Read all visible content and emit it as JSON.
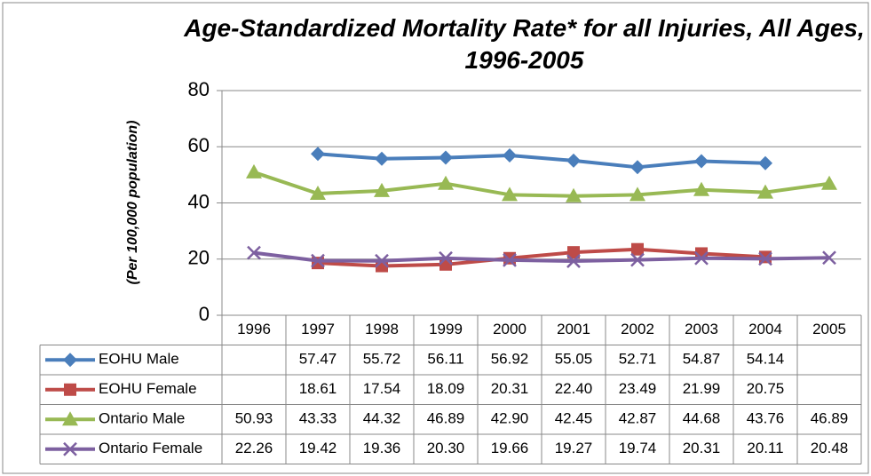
{
  "chart_data": {
    "type": "line",
    "title": "Age-Standardized Mortality Rate* for all Injuries, All Ages, 1996-2005",
    "y_label": "(Per 100,000 population)",
    "categories": [
      "1996",
      "1997",
      "1998",
      "1999",
      "2000",
      "2001",
      "2002",
      "2003",
      "2004",
      "2005"
    ],
    "ylim": [
      0,
      80
    ],
    "yticks": [
      0,
      20,
      40,
      60,
      80
    ],
    "grid": true,
    "series": [
      {
        "name": "EOHU Male",
        "color": "#4a7ebb",
        "marker": "diamond",
        "values": [
          null,
          57.47,
          55.72,
          56.11,
          56.92,
          55.05,
          52.71,
          54.87,
          54.14,
          null
        ],
        "value_labels": [
          null,
          "57.47",
          "55.72",
          "56.11",
          "56.92",
          "55.05",
          "52.71",
          "54.87",
          "54.14",
          null
        ]
      },
      {
        "name": "EOHU Female",
        "color": "#be4b48",
        "marker": "square",
        "values": [
          null,
          18.61,
          17.54,
          18.09,
          20.31,
          22.4,
          23.49,
          21.99,
          20.75,
          null
        ],
        "value_labels": [
          null,
          "18.61",
          "17.54",
          "18.09",
          "20.31",
          "22.40",
          "23.49",
          "21.99",
          "20.75",
          null
        ]
      },
      {
        "name": "Ontario Male",
        "color": "#98b954",
        "marker": "triangle",
        "values": [
          50.93,
          43.33,
          44.32,
          46.89,
          42.9,
          42.45,
          42.87,
          44.68,
          43.76,
          46.89
        ],
        "value_labels": [
          "50.93",
          "43.33",
          "44.32",
          "46.89",
          "42.90",
          "42.45",
          "42.87",
          "44.68",
          "43.76",
          "46.89"
        ]
      },
      {
        "name": "Ontario Female",
        "color": "#7d60a0",
        "marker": "x",
        "values": [
          22.26,
          19.42,
          19.36,
          20.3,
          19.66,
          19.27,
          19.74,
          20.31,
          20.11,
          20.48
        ],
        "value_labels": [
          "22.26",
          "19.42",
          "19.36",
          "20.30",
          "19.66",
          "19.27",
          "19.74",
          "20.31",
          "20.11",
          "20.48"
        ]
      }
    ]
  }
}
